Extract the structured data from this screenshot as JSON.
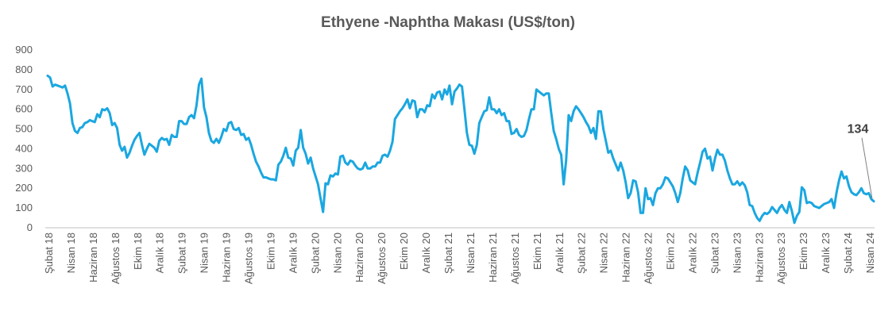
{
  "chart_data": {
    "type": "line",
    "title": "Ethyene -Naphtha Makası (US$/ton)",
    "xlabel": "",
    "ylabel": "",
    "ylim": [
      0,
      900
    ],
    "yticks": [
      0,
      100,
      200,
      300,
      400,
      500,
      600,
      700,
      800,
      900
    ],
    "grid": false,
    "legend": "none",
    "line_color": "#1aa7e0",
    "x_tick_labels": [
      "Şubat 18",
      "Nisan 18",
      "Haziran 18",
      "Ağustos 18",
      "Ekim 18",
      "Aralık 18",
      "Şubat 19",
      "Nisan 19",
      "Haziran 19",
      "Ağustos 19",
      "Ekim 19",
      "Aralık 19",
      "Şubat 20",
      "Nisan 20",
      "Haziran 20",
      "Ağustos 20",
      "Ekim 20",
      "Aralık 20",
      "Şubat 21",
      "Nisan 21",
      "Haziran 21",
      "Ağustos 21",
      "Ekim 21",
      "Aralık 21",
      "Şubat 22",
      "Nisan 22",
      "Haziran 22",
      "Ağustos 22",
      "Ekim 22",
      "Aralık 22",
      "Şubat 23",
      "Nisan 23",
      "Haziran 23",
      "Ağustos 23",
      "Ekim 23",
      "Aralık 23",
      "Şubat 24",
      "Nisan 24"
    ],
    "series": [
      {
        "values": [
          770,
          760,
          715,
          725,
          720,
          715,
          710,
          720,
          680,
          630,
          530,
          490,
          480,
          505,
          510,
          530,
          535,
          545,
          540,
          535,
          575,
          560,
          600,
          595,
          605,
          580,
          520,
          530,
          505,
          420,
          390,
          410,
          355,
          380,
          415,
          445,
          465,
          480,
          420,
          370,
          400,
          425,
          415,
          405,
          385,
          440,
          455,
          445,
          450,
          420,
          470,
          460,
          460,
          540,
          540,
          525,
          525,
          560,
          570,
          555,
          620,
          725,
          755,
          610,
          560,
          480,
          440,
          430,
          450,
          430,
          460,
          500,
          490,
          530,
          535,
          500,
          495,
          505,
          470,
          475,
          445,
          455,
          420,
          375,
          335,
          310,
          280,
          255,
          255,
          250,
          245,
          245,
          240,
          320,
          335,
          365,
          405,
          355,
          350,
          315,
          390,
          405,
          495,
          405,
          375,
          325,
          355,
          300,
          260,
          220,
          150,
          80,
          225,
          220,
          265,
          260,
          275,
          270,
          360,
          365,
          330,
          320,
          340,
          335,
          315,
          300,
          295,
          300,
          330,
          300,
          300,
          310,
          310,
          330,
          330,
          365,
          370,
          360,
          390,
          435,
          550,
          570,
          590,
          605,
          625,
          650,
          605,
          645,
          640,
          560,
          600,
          600,
          585,
          620,
          615,
          675,
          655,
          685,
          690,
          650,
          700,
          675,
          720,
          625,
          690,
          705,
          725,
          715,
          600,
          480,
          420,
          415,
          375,
          420,
          530,
          560,
          590,
          595,
          660,
          600,
          600,
          580,
          600,
          570,
          580,
          540,
          540,
          475,
          480,
          500,
          470,
          460,
          465,
          495,
          550,
          600,
          600,
          700,
          690,
          680,
          670,
          680,
          680,
          580,
          490,
          450,
          400,
          370,
          220,
          340,
          570,
          540,
          590,
          615,
          600,
          580,
          560,
          535,
          515,
          480,
          505,
          450,
          590,
          590,
          500,
          440,
          380,
          390,
          350,
          320,
          290,
          330,
          290,
          230,
          150,
          175,
          240,
          235,
          180,
          75,
          75,
          200,
          145,
          150,
          115,
          175,
          200,
          200,
          220,
          255,
          250,
          230,
          210,
          175,
          130,
          175,
          250,
          310,
          290,
          240,
          230,
          220,
          280,
          330,
          385,
          400,
          350,
          360,
          290,
          350,
          395,
          370,
          370,
          340,
          290,
          250,
          220,
          220,
          235,
          215,
          230,
          215,
          180,
          115,
          110,
          75,
          50,
          35,
          60,
          75,
          70,
          80,
          105,
          90,
          75,
          100,
          115,
          90,
          75,
          130,
          85,
          25,
          60,
          80,
          205,
          190,
          125,
          130,
          125,
          110,
          105,
          100,
          110,
          120,
          125,
          130,
          145,
          100,
          180,
          240,
          285,
          250,
          260,
          210,
          180,
          170,
          165,
          180,
          200,
          175,
          170,
          175,
          145,
          134
        ]
      }
    ],
    "annotations": [
      {
        "text": "134",
        "target_index": "last"
      }
    ]
  }
}
